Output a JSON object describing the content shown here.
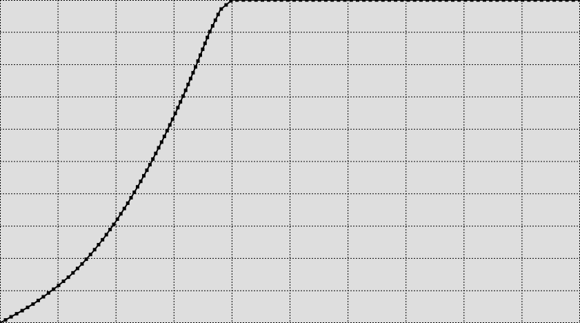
{
  "colors": {
    "background": "#dedede",
    "grid": "#000000",
    "series": "#000000"
  },
  "chart_data": {
    "type": "line",
    "title": "",
    "xlabel": "",
    "ylabel": "",
    "grid": true,
    "grid_style": "dotted",
    "xlim": [
      0,
      10
    ],
    "ylim": [
      0,
      10
    ],
    "xticks": [
      0,
      1,
      2,
      3,
      4,
      5,
      6,
      7,
      8,
      9,
      10
    ],
    "yticks": [
      0,
      1,
      2,
      3,
      4,
      5,
      6,
      7,
      8,
      9,
      10
    ],
    "series": [
      {
        "marker": "square",
        "x": [
          0,
          0.2,
          0.4,
          0.6,
          0.8,
          1.0,
          1.2,
          1.4,
          1.6,
          1.8,
          2.0,
          2.2,
          2.4,
          2.6,
          2.8,
          3.0,
          3.2,
          3.4,
          3.6,
          3.8,
          4.0,
          4.2,
          4.4,
          4.6,
          4.8,
          5.0,
          5.2,
          5.4,
          5.6,
          5.8,
          6.0,
          6.2,
          6.4,
          6.6,
          6.8,
          7.0,
          7.2,
          7.4,
          7.6,
          7.8,
          8.0,
          8.2,
          8.4,
          8.6,
          8.8,
          9.0,
          9.2,
          9.4,
          9.6,
          9.8,
          10.0
        ],
        "y": [
          0,
          0.2,
          0.4,
          0.62,
          0.88,
          1.15,
          1.45,
          1.8,
          2.2,
          2.65,
          3.15,
          3.7,
          4.3,
          4.95,
          5.65,
          6.4,
          7.2,
          8.05,
          8.95,
          9.7,
          10,
          10,
          10,
          10,
          10,
          10,
          10,
          10,
          10,
          10,
          10,
          10,
          10,
          10,
          10,
          10,
          10,
          10,
          10,
          10,
          10,
          10,
          10,
          10,
          10,
          10,
          10,
          10,
          10,
          10,
          10
        ]
      }
    ]
  }
}
